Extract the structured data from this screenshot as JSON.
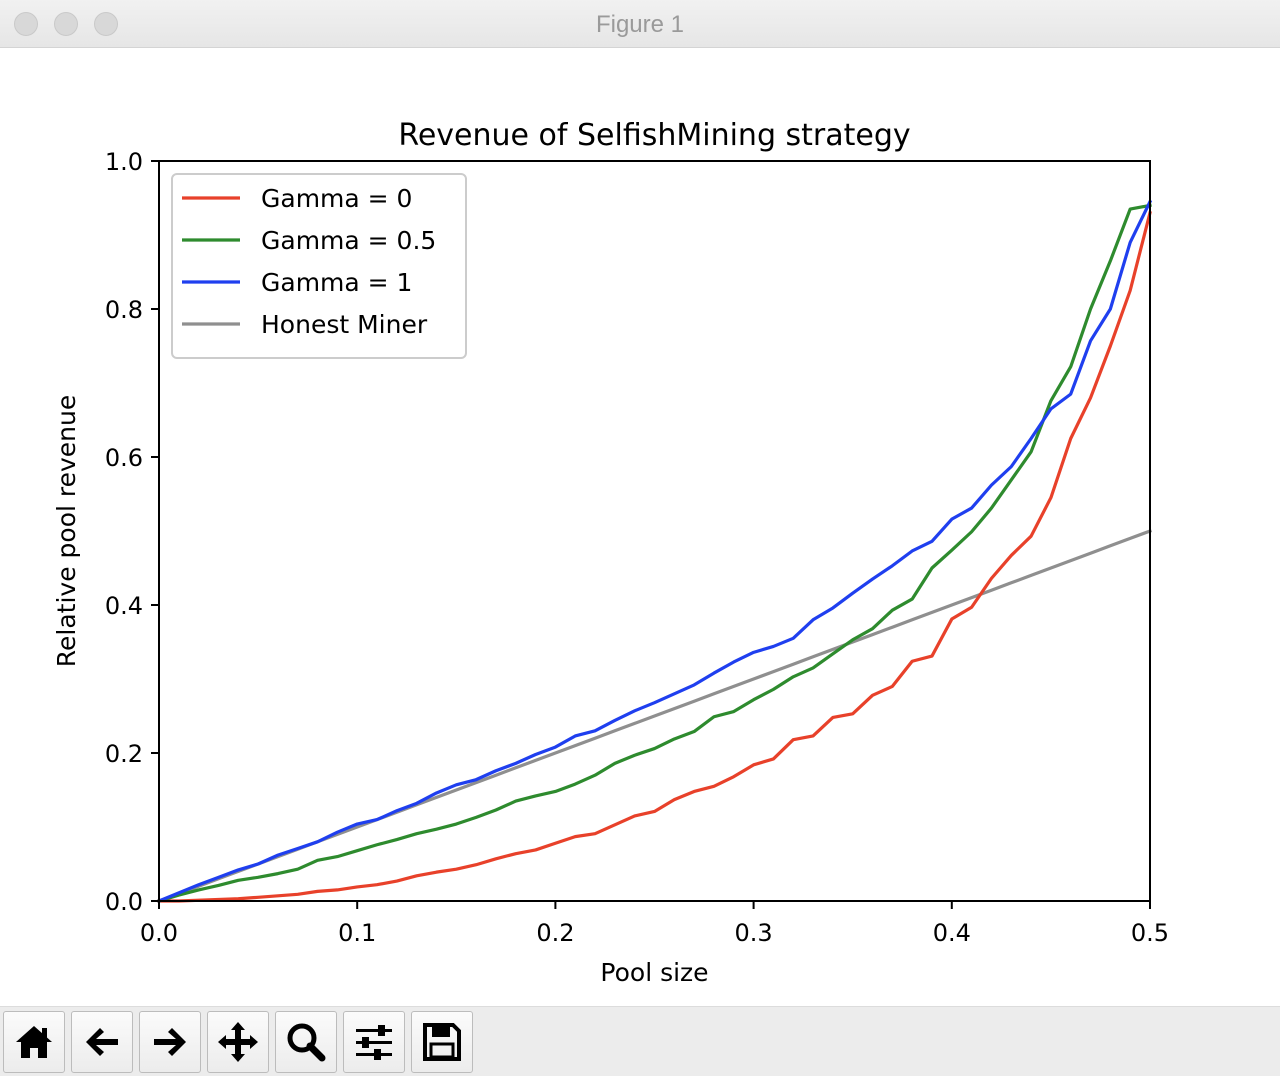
{
  "window": {
    "title": "Figure 1"
  },
  "toolbar": {
    "buttons": [
      {
        "name": "home-button",
        "icon": "home-icon"
      },
      {
        "name": "back-button",
        "icon": "arrow-left-icon"
      },
      {
        "name": "forward-button",
        "icon": "arrow-right-icon"
      },
      {
        "name": "pan-button",
        "icon": "move-icon"
      },
      {
        "name": "zoom-button",
        "icon": "magnifier-icon"
      },
      {
        "name": "configure-subplots-button",
        "icon": "sliders-icon"
      },
      {
        "name": "save-button",
        "icon": "floppy-disk-icon"
      }
    ]
  },
  "chart_data": {
    "type": "line",
    "title": "Revenue of SelfishMining strategy",
    "xlabel": "Pool size",
    "ylabel": "Relative pool revenue",
    "xlim": [
      0.0,
      0.5
    ],
    "ylim": [
      0.0,
      1.0
    ],
    "xticks": [
      "0.0",
      "0.1",
      "0.2",
      "0.3",
      "0.4",
      "0.5"
    ],
    "yticks": [
      "0.0",
      "0.2",
      "0.4",
      "0.6",
      "0.8",
      "1.0"
    ],
    "legend_position": "upper-left",
    "grid": false,
    "x": [
      0.0,
      0.01,
      0.02,
      0.03,
      0.04,
      0.05,
      0.06,
      0.07,
      0.08,
      0.09,
      0.1,
      0.11,
      0.12,
      0.13,
      0.14,
      0.15,
      0.16,
      0.17,
      0.18,
      0.19,
      0.2,
      0.21,
      0.22,
      0.23,
      0.24,
      0.25,
      0.26,
      0.27,
      0.28,
      0.29,
      0.3,
      0.31,
      0.32,
      0.33,
      0.34,
      0.35,
      0.36,
      0.37,
      0.38,
      0.39,
      0.4,
      0.41,
      0.42,
      0.43,
      0.44,
      0.45,
      0.46,
      0.47,
      0.48,
      0.49,
      0.5
    ],
    "series": [
      {
        "name": "Gamma = 0",
        "color": "#e8412a",
        "values": [
          0.0,
          0.0,
          0.001,
          0.002,
          0.003,
          0.005,
          0.007,
          0.009,
          0.013,
          0.015,
          0.019,
          0.022,
          0.027,
          0.034,
          0.039,
          0.043,
          0.049,
          0.057,
          0.064,
          0.069,
          0.078,
          0.087,
          0.091,
          0.103,
          0.115,
          0.121,
          0.137,
          0.148,
          0.155,
          0.168,
          0.184,
          0.192,
          0.218,
          0.223,
          0.248,
          0.253,
          0.278,
          0.29,
          0.324,
          0.331,
          0.381,
          0.397,
          0.436,
          0.467,
          0.493,
          0.545,
          0.625,
          0.68,
          0.75,
          0.825,
          0.93
        ]
      },
      {
        "name": "Gamma = 0.5",
        "color": "#2e8b2e",
        "values": [
          0.0,
          0.008,
          0.015,
          0.021,
          0.028,
          0.032,
          0.037,
          0.043,
          0.055,
          0.06,
          0.068,
          0.076,
          0.083,
          0.091,
          0.097,
          0.104,
          0.113,
          0.123,
          0.135,
          0.142,
          0.148,
          0.158,
          0.17,
          0.186,
          0.197,
          0.206,
          0.219,
          0.229,
          0.249,
          0.256,
          0.272,
          0.286,
          0.303,
          0.315,
          0.334,
          0.353,
          0.368,
          0.393,
          0.408,
          0.45,
          0.474,
          0.499,
          0.531,
          0.569,
          0.607,
          0.676,
          0.722,
          0.8,
          0.865,
          0.935,
          0.94
        ]
      },
      {
        "name": "Gamma = 1",
        "color": "#1f3fef",
        "values": [
          0.0,
          0.011,
          0.022,
          0.032,
          0.042,
          0.05,
          0.062,
          0.071,
          0.08,
          0.093,
          0.104,
          0.11,
          0.122,
          0.132,
          0.146,
          0.157,
          0.164,
          0.176,
          0.186,
          0.198,
          0.208,
          0.223,
          0.23,
          0.244,
          0.257,
          0.268,
          0.28,
          0.292,
          0.308,
          0.323,
          0.336,
          0.344,
          0.355,
          0.38,
          0.396,
          0.416,
          0.435,
          0.453,
          0.473,
          0.486,
          0.516,
          0.531,
          0.562,
          0.587,
          0.625,
          0.665,
          0.685,
          0.757,
          0.8,
          0.89,
          0.945
        ]
      },
      {
        "name": "Honest Miner",
        "color": "#8f8f8f",
        "values": [
          0.0,
          0.01,
          0.02,
          0.03,
          0.04,
          0.05,
          0.06,
          0.07,
          0.08,
          0.09,
          0.1,
          0.11,
          0.12,
          0.13,
          0.14,
          0.15,
          0.16,
          0.17,
          0.18,
          0.19,
          0.2,
          0.21,
          0.22,
          0.23,
          0.24,
          0.25,
          0.26,
          0.27,
          0.28,
          0.29,
          0.3,
          0.31,
          0.32,
          0.33,
          0.34,
          0.35,
          0.36,
          0.37,
          0.38,
          0.39,
          0.4,
          0.41,
          0.42,
          0.43,
          0.44,
          0.45,
          0.46,
          0.47,
          0.48,
          0.49,
          0.5
        ]
      }
    ]
  }
}
